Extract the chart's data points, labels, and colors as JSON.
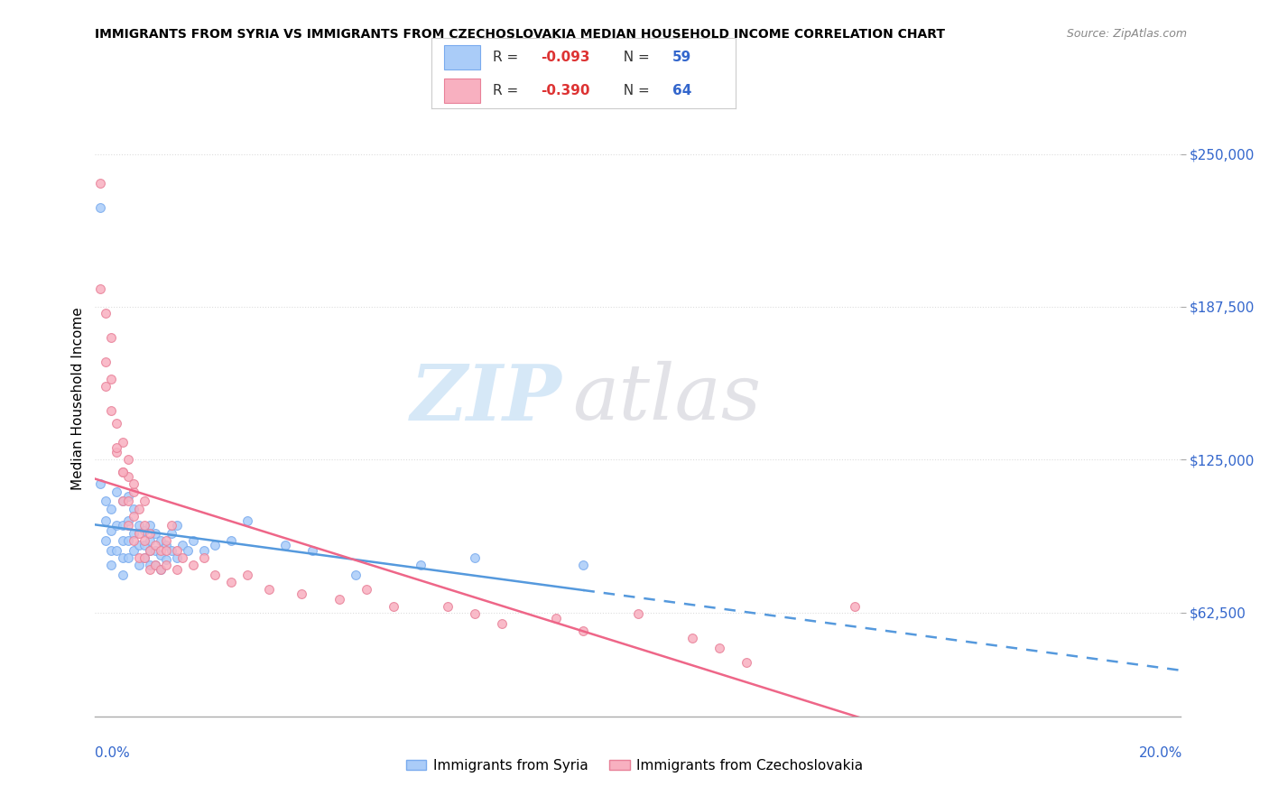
{
  "title": "IMMIGRANTS FROM SYRIA VS IMMIGRANTS FROM CZECHOSLOVAKIA MEDIAN HOUSEHOLD INCOME CORRELATION CHART",
  "source": "Source: ZipAtlas.com",
  "ylabel": "Median Household Income",
  "yticks": [
    62500,
    125000,
    187500,
    250000
  ],
  "ytick_labels": [
    "$62,500",
    "$125,000",
    "$187,500",
    "$250,000"
  ],
  "xmin": 0.0,
  "xmax": 0.2,
  "ymin": 20000,
  "ymax": 280000,
  "syria_color": "#aaccf8",
  "syria_edge_color": "#7aabee",
  "czech_color": "#f8b0c0",
  "czech_edge_color": "#e88098",
  "syria_line_color": "#5599dd",
  "czech_line_color": "#ee6688",
  "grid_color": "#dddddd",
  "background_color": "#ffffff",
  "legend_text_color": "#333333",
  "r_value_color": "#dd3333",
  "n_value_color": "#3366cc",
  "syria_R": -0.093,
  "syria_N": 59,
  "czech_R": -0.39,
  "czech_N": 64,
  "syria_x": [
    0.001,
    0.001,
    0.002,
    0.002,
    0.002,
    0.003,
    0.003,
    0.003,
    0.003,
    0.004,
    0.004,
    0.004,
    0.005,
    0.005,
    0.005,
    0.005,
    0.005,
    0.006,
    0.006,
    0.006,
    0.006,
    0.007,
    0.007,
    0.007,
    0.008,
    0.008,
    0.008,
    0.009,
    0.009,
    0.009,
    0.01,
    0.01,
    0.01,
    0.01,
    0.011,
    0.011,
    0.011,
    0.012,
    0.012,
    0.012,
    0.013,
    0.013,
    0.014,
    0.014,
    0.015,
    0.015,
    0.016,
    0.017,
    0.018,
    0.02,
    0.022,
    0.025,
    0.028,
    0.035,
    0.04,
    0.048,
    0.06,
    0.07,
    0.09
  ],
  "syria_y": [
    228000,
    115000,
    108000,
    100000,
    92000,
    105000,
    96000,
    88000,
    82000,
    112000,
    98000,
    88000,
    108000,
    98000,
    92000,
    85000,
    78000,
    110000,
    100000,
    92000,
    85000,
    105000,
    95000,
    88000,
    98000,
    90000,
    82000,
    96000,
    90000,
    85000,
    98000,
    92000,
    88000,
    82000,
    95000,
    88000,
    82000,
    92000,
    86000,
    80000,
    90000,
    84000,
    95000,
    88000,
    98000,
    85000,
    90000,
    88000,
    92000,
    88000,
    90000,
    92000,
    100000,
    90000,
    88000,
    78000,
    82000,
    85000,
    82000
  ],
  "czech_x": [
    0.001,
    0.001,
    0.002,
    0.002,
    0.003,
    0.003,
    0.003,
    0.004,
    0.004,
    0.005,
    0.005,
    0.005,
    0.006,
    0.006,
    0.006,
    0.007,
    0.007,
    0.007,
    0.008,
    0.008,
    0.008,
    0.009,
    0.009,
    0.009,
    0.01,
    0.01,
    0.01,
    0.011,
    0.011,
    0.012,
    0.012,
    0.013,
    0.013,
    0.014,
    0.015,
    0.015,
    0.016,
    0.018,
    0.02,
    0.022,
    0.025,
    0.028,
    0.032,
    0.038,
    0.045,
    0.05,
    0.055,
    0.065,
    0.07,
    0.075,
    0.085,
    0.09,
    0.1,
    0.11,
    0.115,
    0.12,
    0.002,
    0.004,
    0.005,
    0.006,
    0.007,
    0.009,
    0.013,
    0.14
  ],
  "czech_y": [
    238000,
    195000,
    185000,
    165000,
    175000,
    158000,
    145000,
    140000,
    128000,
    132000,
    120000,
    108000,
    118000,
    108000,
    98000,
    112000,
    102000,
    92000,
    105000,
    95000,
    85000,
    98000,
    92000,
    85000,
    95000,
    88000,
    80000,
    90000,
    82000,
    88000,
    80000,
    92000,
    82000,
    98000,
    88000,
    80000,
    85000,
    82000,
    85000,
    78000,
    75000,
    78000,
    72000,
    70000,
    68000,
    72000,
    65000,
    65000,
    62000,
    58000,
    60000,
    55000,
    62000,
    52000,
    48000,
    42000,
    155000,
    130000,
    120000,
    125000,
    115000,
    108000,
    88000,
    65000
  ]
}
